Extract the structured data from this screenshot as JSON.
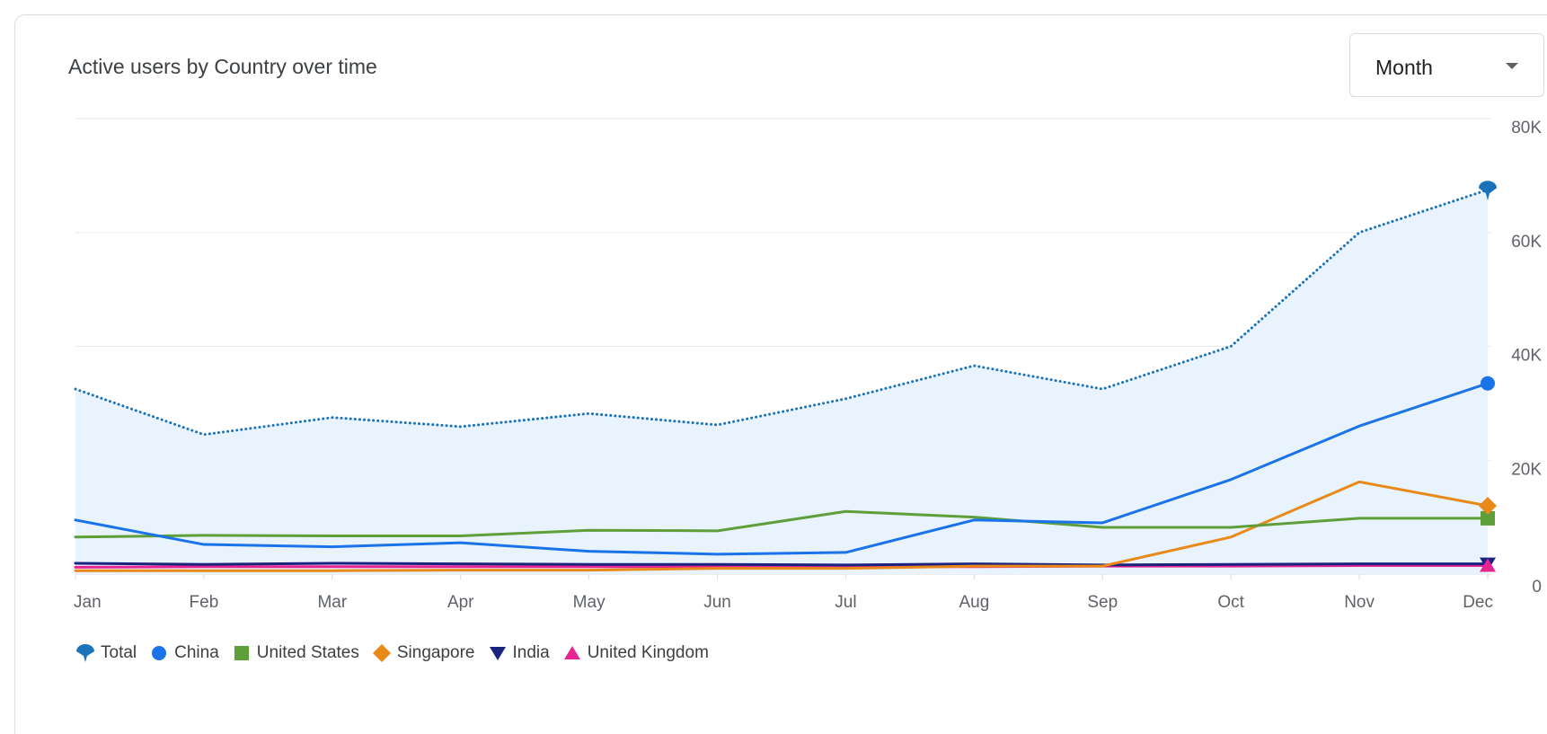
{
  "header": {
    "title": "Active users by Country over time",
    "period_select": {
      "value": "Month"
    }
  },
  "legend": [
    {
      "label": "Total",
      "color": "#1a73b8",
      "marker": "pin-icon"
    },
    {
      "label": "China",
      "color": "#1a73e8",
      "marker": "circle-icon"
    },
    {
      "label": "United States",
      "color": "#5e9f3a",
      "marker": "square-icon"
    },
    {
      "label": "Singapore",
      "color": "#e8891a",
      "marker": "diamond-icon"
    },
    {
      "label": "India",
      "color": "#1a237e",
      "marker": "triangle-down-icon"
    },
    {
      "label": "United Kingdom",
      "color": "#e52592",
      "marker": "triangle-up-icon"
    }
  ],
  "chart_data": {
    "type": "line",
    "title": "Active users by Country over time",
    "categories": [
      "Jan",
      "Feb",
      "Mar",
      "Apr",
      "May",
      "Jun",
      "Jul",
      "Aug",
      "Sep",
      "Oct",
      "Nov",
      "Dec"
    ],
    "y_ticks": [
      "0",
      "20K",
      "40K",
      "60K",
      "80K"
    ],
    "ylim": [
      0,
      80000
    ],
    "grid": true,
    "legend_position": "bottom-left",
    "series": [
      {
        "name": "Total",
        "style": "dotted-area",
        "color": "#1a73b8",
        "values": [
          32500,
          24500,
          27500,
          25900,
          28200,
          26200,
          30800,
          36600,
          32500,
          40000,
          60000,
          67500
        ]
      },
      {
        "name": "China",
        "color": "#1a73e8",
        "values": [
          9500,
          5200,
          4800,
          5500,
          4000,
          3500,
          3800,
          9500,
          9000,
          16600,
          26000,
          33500
        ]
      },
      {
        "name": "United States",
        "color": "#5e9f3a",
        "values": [
          6500,
          6800,
          6700,
          6700,
          7700,
          7600,
          11000,
          10000,
          8200,
          8200,
          9800,
          9800
        ]
      },
      {
        "name": "Singapore",
        "color": "#e8891a",
        "values": [
          600,
          600,
          600,
          700,
          700,
          1000,
          1000,
          1400,
          1400,
          6500,
          16200,
          12000
        ]
      },
      {
        "name": "India",
        "color": "#1a237e",
        "values": [
          1900,
          1700,
          1900,
          1800,
          1700,
          1700,
          1600,
          1800,
          1600,
          1700,
          1800,
          1800
        ]
      },
      {
        "name": "United Kingdom",
        "color": "#e52592",
        "values": [
          1200,
          1300,
          1300,
          1300,
          1300,
          1300,
          1300,
          1300,
          1400,
          1400,
          1500,
          1500
        ]
      }
    ]
  }
}
